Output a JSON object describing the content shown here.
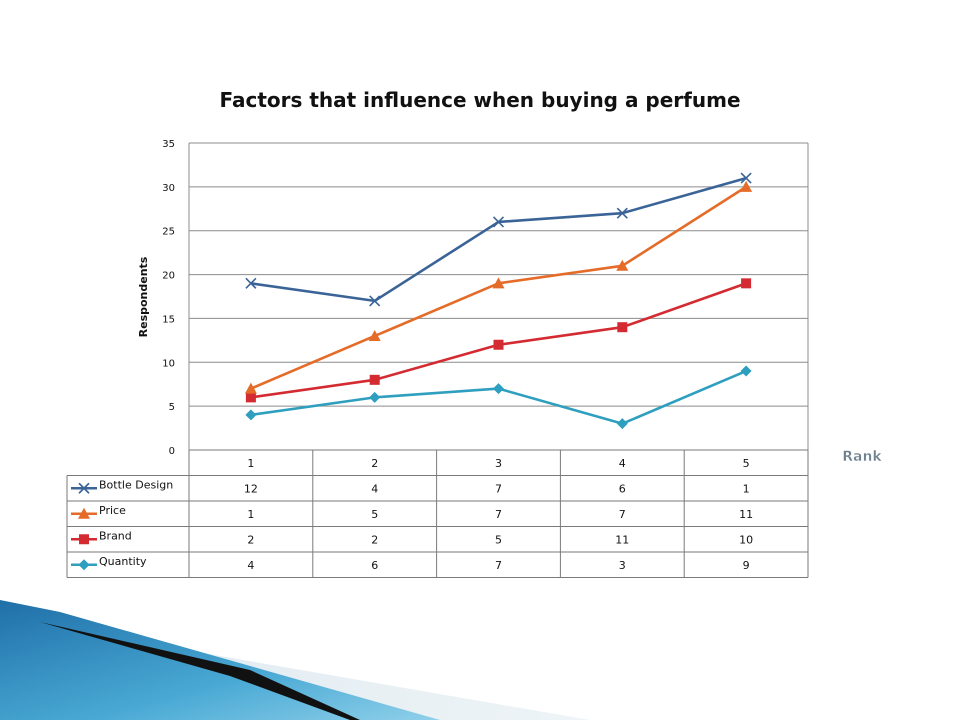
{
  "chart_data": {
    "type": "line",
    "title": "Factors that influence when buying a perfume",
    "xlabel": "Rank",
    "ylabel": "Respondents",
    "categories": [
      "1",
      "2",
      "3",
      "4",
      "5"
    ],
    "ylim": [
      0,
      35
    ],
    "yticks": [
      0,
      5,
      10,
      15,
      20,
      25,
      30,
      35
    ],
    "grid": "horizontal",
    "legend": "data table below plot",
    "series": [
      {
        "name": "Bottle Design",
        "color": "#3a6497",
        "marker": "x",
        "values": [
          19,
          17,
          26,
          27,
          31
        ],
        "table": [
          "12",
          "4",
          "7",
          "6",
          "1"
        ]
      },
      {
        "name": "Price",
        "color": "#e56b28",
        "marker": "triangle",
        "values": [
          7,
          13,
          19,
          21,
          30
        ],
        "table": [
          "1",
          "5",
          "7",
          "7",
          "11"
        ]
      },
      {
        "name": "Brand",
        "color": "#d42a32",
        "marker": "square",
        "values": [
          6,
          8,
          12,
          14,
          19
        ],
        "table": [
          "2",
          "2",
          "5",
          "11",
          "10"
        ]
      },
      {
        "name": "Quantity",
        "color": "#2f9fbf",
        "marker": "diamond",
        "values": [
          4,
          6,
          7,
          3,
          9
        ],
        "table": [
          "4",
          "6",
          "7",
          "3",
          "9"
        ]
      }
    ]
  }
}
